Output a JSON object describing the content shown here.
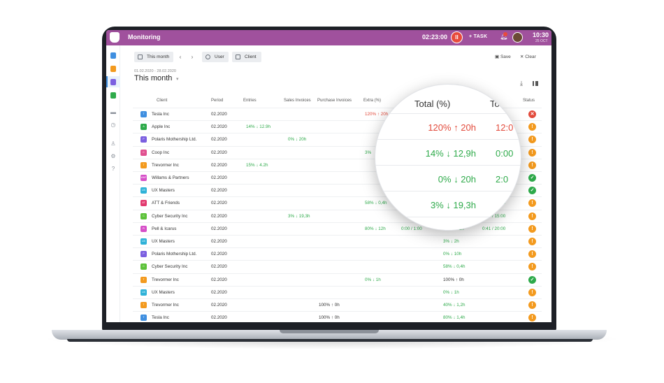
{
  "topbar": {
    "title": "Monitoring",
    "timer": "02:23:00",
    "pause_glyph": "II",
    "task_label": "+ TASK",
    "clock": "10:30",
    "date": "25 OCT",
    "bell_icon": "bell-icon"
  },
  "toolbar": {
    "period_label": "This month",
    "prev": "‹",
    "next": "›",
    "user_label": "User",
    "client_label": "Client",
    "save_label": "Save",
    "clear_label": "Clear"
  },
  "period": {
    "range": "01.02.2020 - 28.02.2020",
    "title": "This month",
    "caret": "▾"
  },
  "table": {
    "headers": {
      "client": "Client",
      "period": "Period",
      "entries": "Entries",
      "sales": "Sales Invoices",
      "purchase": "Purchase Invoices",
      "extra": "Extra (%)",
      "total": "Total (%)",
      "status": "Status"
    },
    "rows": [
      {
        "client": "Tesla Inc",
        "badge": "T",
        "badge_color": "#3f8fe0",
        "period": "02.2020",
        "entries": "",
        "sales": "",
        "purchase": "",
        "extra": "120% ↑ 20h",
        "extra_color": "red",
        "total": "",
        "time": "",
        "status": "error"
      },
      {
        "client": "Apple Inc",
        "badge": "A",
        "badge_color": "#2eaa4a",
        "period": "02.2020",
        "entries": "14% ↓ 12.9h",
        "sales": "",
        "purchase": "",
        "extra": "",
        "total": "",
        "time": "",
        "status": "warning"
      },
      {
        "client": "Polaris Mothership Ltd.",
        "badge": "P",
        "badge_color": "#7b5fe0",
        "period": "02.2020",
        "entries": "",
        "sales": "0% ↓ 20h",
        "purchase": "",
        "extra": "",
        "total": "",
        "time": "",
        "status": "warning"
      },
      {
        "client": "Coop Inc",
        "badge": "C",
        "badge_color": "#e0508f",
        "period": "02.2020",
        "entries": "",
        "sales": "",
        "purchase": "",
        "extra": "3%",
        "extra_color": "green",
        "total": "",
        "time": "",
        "status": "warning"
      },
      {
        "client": "Trevormer Inc",
        "badge": "T",
        "badge_color": "#f39a1e",
        "period": "02.2020",
        "entries": "15% ↓ 4.2h",
        "sales": "",
        "purchase": "",
        "extra": "",
        "total": "",
        "time": "",
        "status": "warning"
      },
      {
        "client": "Willams & Partners",
        "badge": "W&P",
        "badge_color": "#d64fc8",
        "period": "02.2020",
        "entries": "",
        "sales": "",
        "purchase": "",
        "extra": "",
        "total": "",
        "time": "",
        "status": "ok"
      },
      {
        "client": "UX Masters",
        "badge": "UX",
        "badge_color": "#2fb2d8",
        "period": "02.2020",
        "entries": "",
        "sales": "",
        "purchase": "",
        "extra": "",
        "total": "",
        "time": "",
        "status": "ok"
      },
      {
        "client": "ATT & Friends",
        "badge": "AT",
        "badge_color": "#e23a6f",
        "period": "02.2020",
        "entries": "",
        "sales": "",
        "purchase": "",
        "extra": "58% ↓ 0,4h",
        "extra_color": "green",
        "total": "",
        "time": "0:20 / 20:00",
        "status": "warning"
      },
      {
        "client": "Cyber Security Inc",
        "badge": "C",
        "badge_color": "#5dc23a",
        "period": "02.2020",
        "entries": "",
        "sales": "3% ↓ 19,3h",
        "purchase": "",
        "extra": "",
        "total": "",
        "time": "0:00 / 15:00",
        "status": "warning"
      },
      {
        "client": "Pell & Icarus",
        "badge": "PI",
        "badge_color": "#d64fc8",
        "period": "02.2020",
        "entries": "",
        "sales": "",
        "purchase": "",
        "extra": "80% ↓ 12h",
        "extra_color": "green",
        "extra2": "0:00 / 1:00",
        "total": "80% ↓ 12h",
        "time": "0:41 / 20:00",
        "status": "warning"
      },
      {
        "client": "UX Masters",
        "badge": "UX",
        "badge_color": "#2fb2d8",
        "period": "02.2020",
        "entries": "",
        "sales": "",
        "purchase": "",
        "extra": "",
        "total": "3% ↓ 2h",
        "time": "",
        "status": "warning"
      },
      {
        "client": "Polaris Mothership Ltd.",
        "badge": "P",
        "badge_color": "#7b5fe0",
        "period": "02.2020",
        "entries": "",
        "sales": "",
        "purchase": "",
        "extra": "",
        "total": "0% ↓ 10h",
        "time": "",
        "status": "warning"
      },
      {
        "client": "Cyber Security Inc",
        "badge": "C",
        "badge_color": "#5dc23a",
        "period": "02.2020",
        "entries": "",
        "sales": "",
        "purchase": "",
        "extra": "",
        "total": "58% ↓ 0,4h",
        "time": "",
        "status": "warning"
      },
      {
        "client": "Trevormer Inc",
        "badge": "T",
        "badge_color": "#f39a1e",
        "period": "02.2020",
        "entries": "",
        "sales": "",
        "purchase": "",
        "extra": "0% ↓ 1h",
        "extra_color": "green",
        "total": "100% ↑ 0h",
        "total_color": "dark",
        "time": "",
        "status": "ok"
      },
      {
        "client": "UX Masters",
        "badge": "UX",
        "badge_color": "#2fb2d8",
        "period": "02.2020",
        "entries": "",
        "sales": "",
        "purchase": "",
        "extra": "",
        "total": "0% ↓ 1h",
        "time": "",
        "status": "warning"
      },
      {
        "client": "Trevormer Inc",
        "badge": "T",
        "badge_color": "#f39a1e",
        "period": "02.2020",
        "entries": "",
        "sales": "",
        "purchase": "100% ↑ 0h",
        "extra": "",
        "total": "40% ↓ 1,2h",
        "time": "",
        "status": "warning"
      },
      {
        "client": "Tesla Inc",
        "badge": "T",
        "badge_color": "#3f8fe0",
        "period": "02.2020",
        "entries": "",
        "sales": "",
        "purchase": "100% ↑ 0h",
        "extra": "",
        "total": "80% ↓ 1,4h",
        "time": "",
        "status": "warning"
      }
    ]
  },
  "magnifier": {
    "header_total": "Total (%)",
    "header_time": "To",
    "rows": [
      {
        "value": "120% ↑ 20h",
        "color": "red",
        "time": "12:0"
      },
      {
        "value": "14% ↓ 12,9h",
        "color": "green",
        "time": "0:00"
      },
      {
        "value": "0% ↓ 20h",
        "color": "green",
        "time": "2:0"
      },
      {
        "value": "3% ↓ 19,3h",
        "color": "green",
        "time": ""
      }
    ]
  },
  "colors": {
    "accent": "#a0519d",
    "ok": "#2eaa4a",
    "warning": "#f39a1e",
    "error": "#e24a3b"
  }
}
